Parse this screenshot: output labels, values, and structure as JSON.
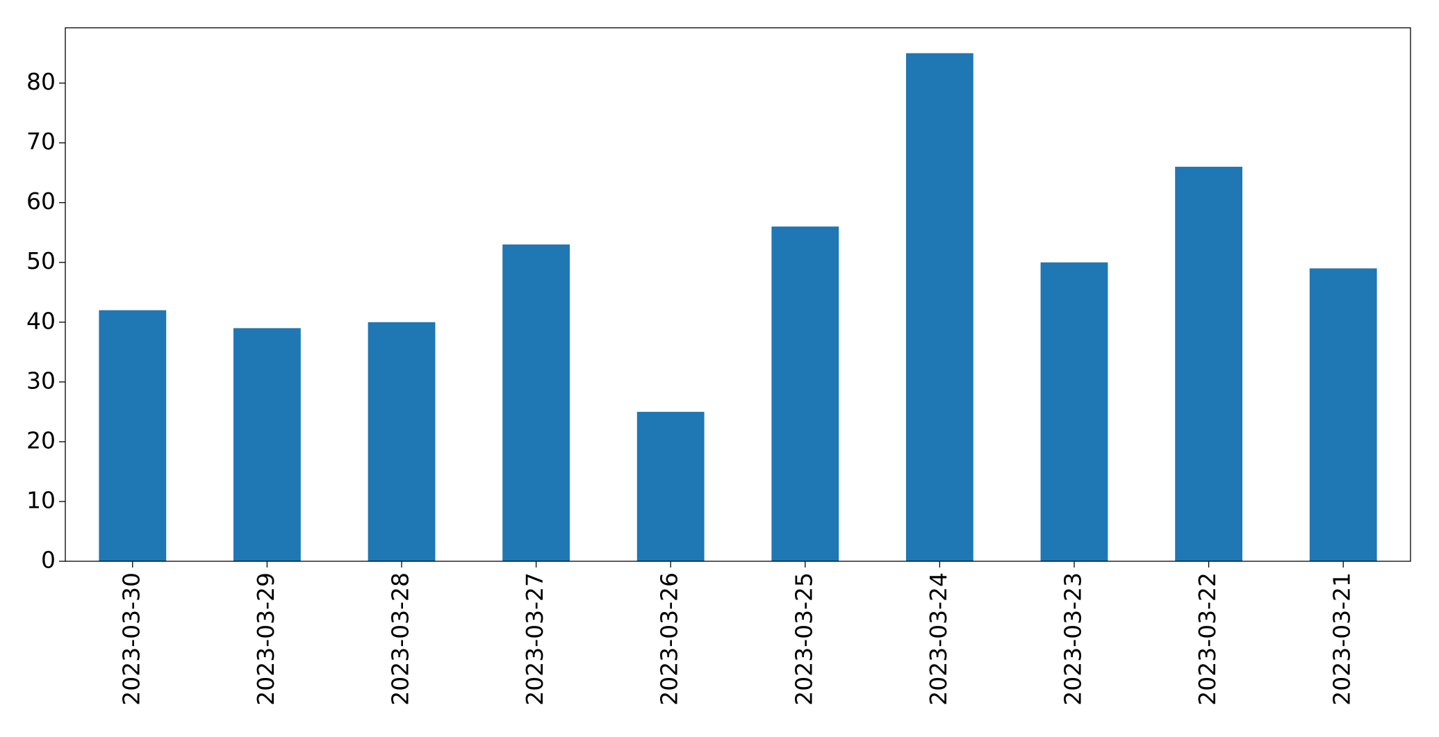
{
  "chart_data": {
    "type": "bar",
    "categories": [
      "2023-03-30",
      "2023-03-29",
      "2023-03-28",
      "2023-03-27",
      "2023-03-26",
      "2023-03-25",
      "2023-03-24",
      "2023-03-23",
      "2023-03-22",
      "2023-03-21"
    ],
    "values": [
      42,
      39,
      40,
      53,
      25,
      56,
      85,
      50,
      66,
      49
    ],
    "color": "#1f77b4",
    "ylim": [
      0,
      89.25
    ],
    "yticks": [
      0,
      10,
      20,
      30,
      40,
      50,
      60,
      70,
      80
    ],
    "grid": false
  }
}
